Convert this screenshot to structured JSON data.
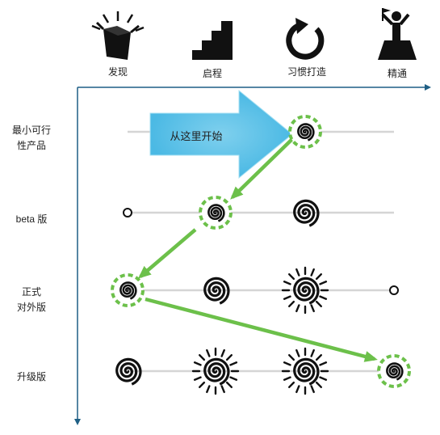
{
  "stages": [
    {
      "label": "发现",
      "icon": "box-icon"
    },
    {
      "label": "启程",
      "icon": "stairs-icon"
    },
    {
      "label": "习惯打造",
      "icon": "cycle-arrow-icon"
    },
    {
      "label": "精通",
      "icon": "summit-icon"
    }
  ],
  "rows": [
    {
      "label_lines": [
        "最小可行",
        "性产品"
      ]
    },
    {
      "label_lines": [
        "beta 版"
      ]
    },
    {
      "label_lines": [
        "正式",
        "对外版"
      ]
    },
    {
      "label_lines": [
        "升级版"
      ]
    }
  ],
  "start_label": "从这里开始",
  "colors": {
    "axis": "#1f5f85",
    "track": "#d5d5d5",
    "highlight": "#6cc04a",
    "start_arrow": "#5bc4e8",
    "glyph": "#111111"
  }
}
